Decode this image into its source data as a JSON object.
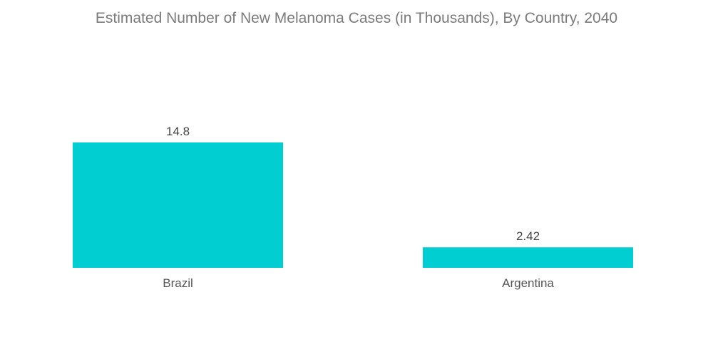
{
  "chart_data": {
    "type": "bar",
    "title": "Estimated Number of New Melanoma Cases (in Thousands), By Country, 2040",
    "categories": [
      "Brazil",
      "Argentina"
    ],
    "values": [
      14.8,
      2.42
    ],
    "value_labels": [
      "14.8",
      "2.42"
    ],
    "xlabel": "",
    "ylabel": "",
    "ylim": [
      0,
      20
    ],
    "grid": false,
    "legend": "none",
    "bar_color": "#00ced1"
  }
}
